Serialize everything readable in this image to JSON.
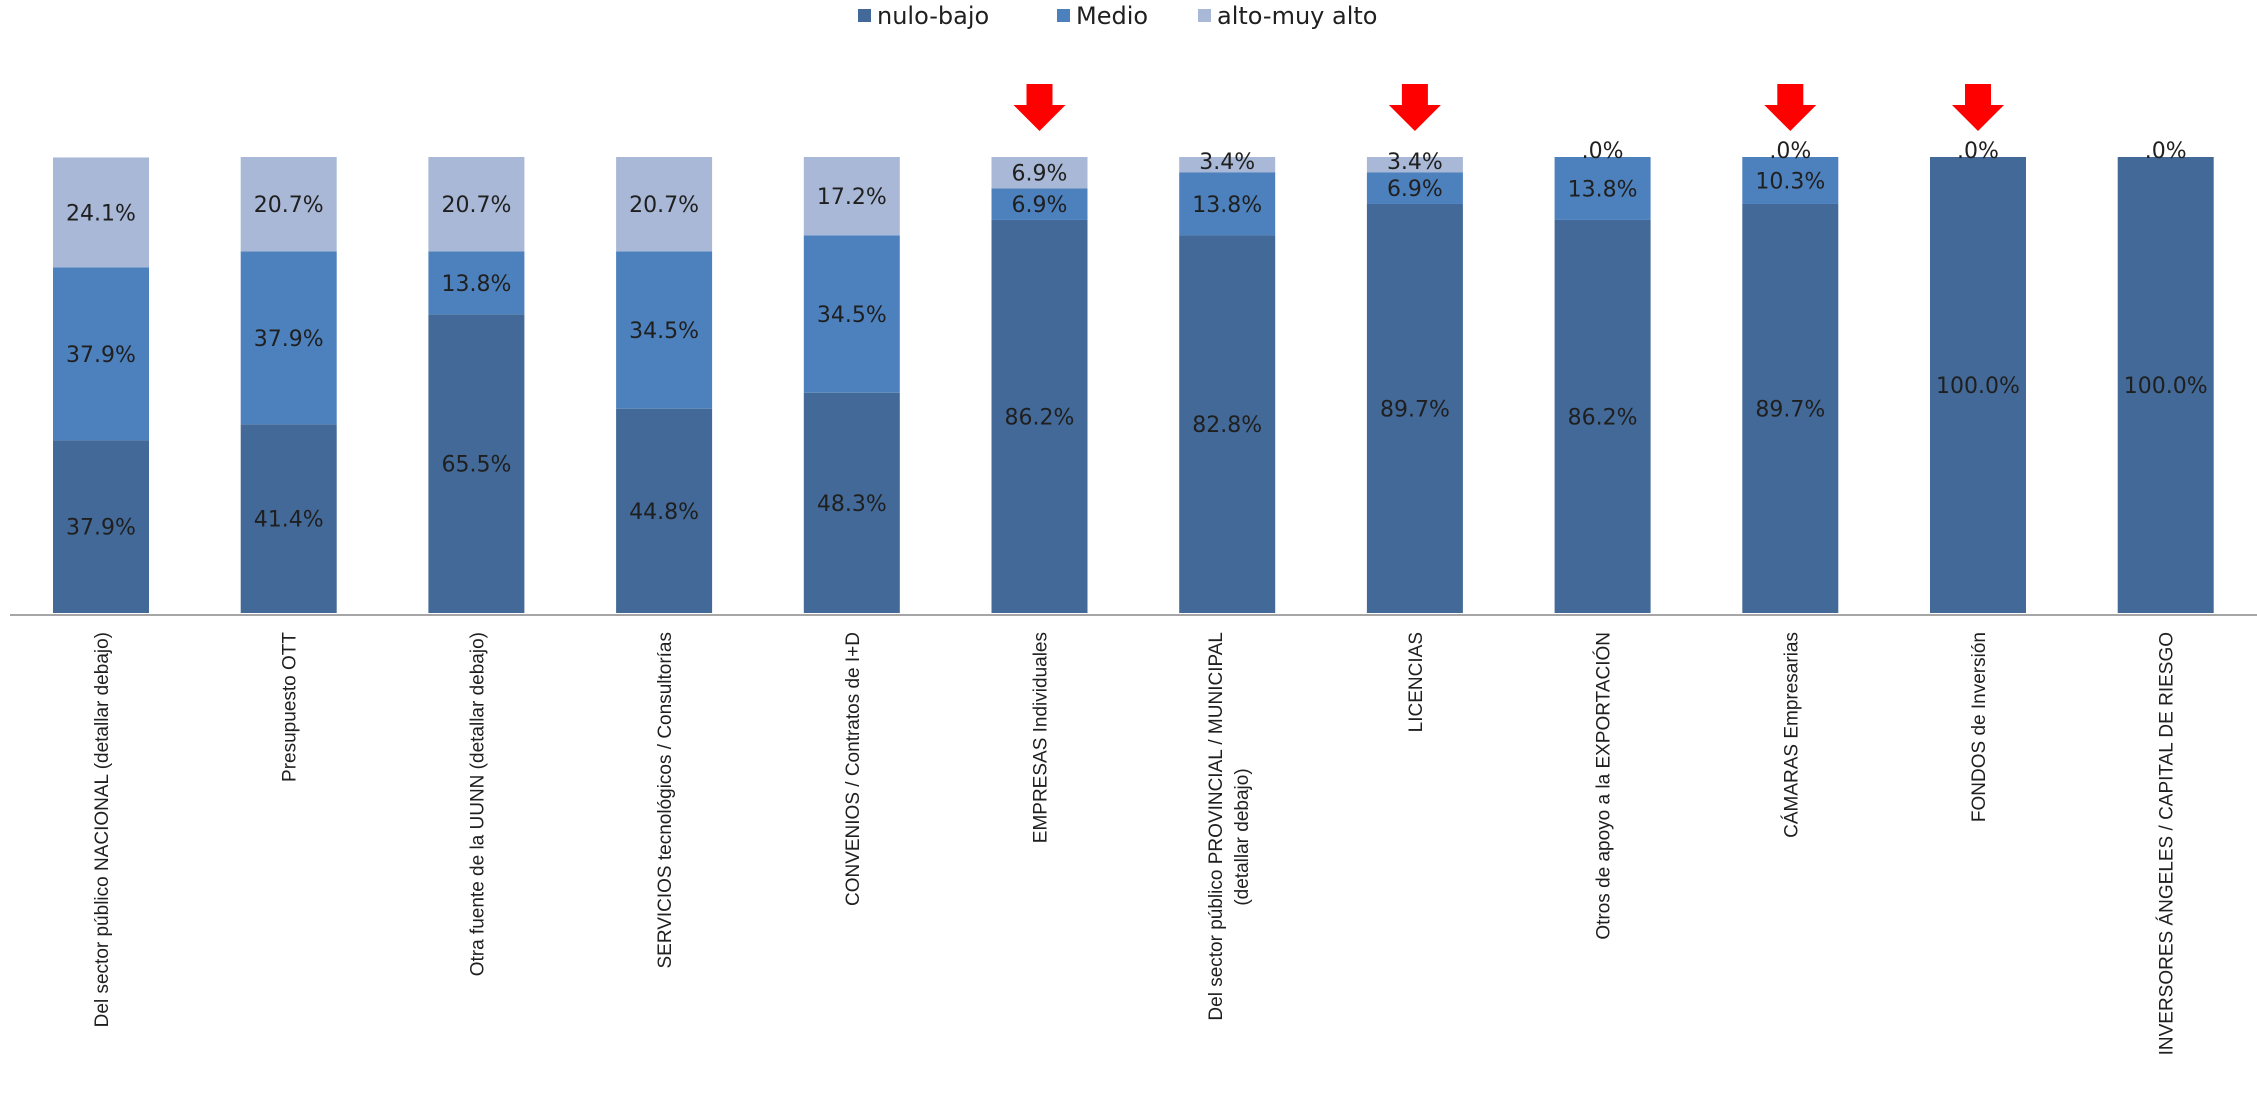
{
  "chart_data": {
    "type": "bar",
    "stacked": true,
    "percent_scale": true,
    "ylim": [
      0,
      100
    ],
    "legend_position": "top",
    "grid": false,
    "categories": [
      "Del sector público NACIONAL (detallar debajo)",
      "Presupuesto OTT",
      "Otra fuente de la UUNN (detallar debajo)",
      "SERVICIOS tecnológicos / Consultorías",
      "CONVENIOS / Contratos de I+D",
      "EMPRESAS Individuales",
      "Del sector público PROVINCIAL / MUNICIPAL (detallar debajo)",
      "LICENCIAS",
      "Otros de apoyo a la EXPORTACIÓN",
      "CÁMARAS Empresarias",
      "FONDOS de Inversión",
      "INVERSORES ÁNGELES / CAPITAL DE RIESGO"
    ],
    "series": [
      {
        "name": "nulo-bajo",
        "color": "#426998",
        "values": [
          37.9,
          41.4,
          65.5,
          44.8,
          48.3,
          86.2,
          82.8,
          89.7,
          86.2,
          89.7,
          100.0,
          100.0
        ],
        "labels": [
          "37.9%",
          "41.4%",
          "65.5%",
          "44.8%",
          "48.3%",
          "86.2%",
          "82.8%",
          "89.7%",
          "86.2%",
          "89.7%",
          "100.0%",
          "100.0%"
        ]
      },
      {
        "name": "Medio",
        "color": "#4d81bd",
        "values": [
          37.9,
          37.9,
          13.8,
          34.5,
          34.5,
          6.9,
          13.8,
          6.9,
          13.8,
          10.3,
          0,
          0
        ],
        "labels": [
          "37.9%",
          "37.9%",
          "13.8%",
          "34.5%",
          "34.5%",
          "6.9%",
          "13.8%",
          "6.9%",
          "13.8%",
          "10.3%",
          "",
          ""
        ]
      },
      {
        "name": "alto-muy alto",
        "color": "#a8b8d6",
        "values": [
          24.1,
          20.7,
          20.7,
          20.7,
          17.2,
          6.9,
          3.4,
          3.4,
          0,
          0,
          0,
          0
        ],
        "labels": [
          "24.1%",
          "20.7%",
          "20.7%",
          "20.7%",
          "17.2%",
          "6.9%",
          "3.4%",
          "3.4%",
          ".0%",
          ".0%",
          ".0%",
          ".0%"
        ]
      }
    ],
    "highlighted_categories": [
      "EMPRESAS Individuales",
      "LICENCIAS",
      "CÁMARAS Empresarias",
      "FONDOS de Inversión"
    ],
    "highlight_color": "#ff0000",
    "title": "",
    "xlabel": "",
    "ylabel": ""
  }
}
